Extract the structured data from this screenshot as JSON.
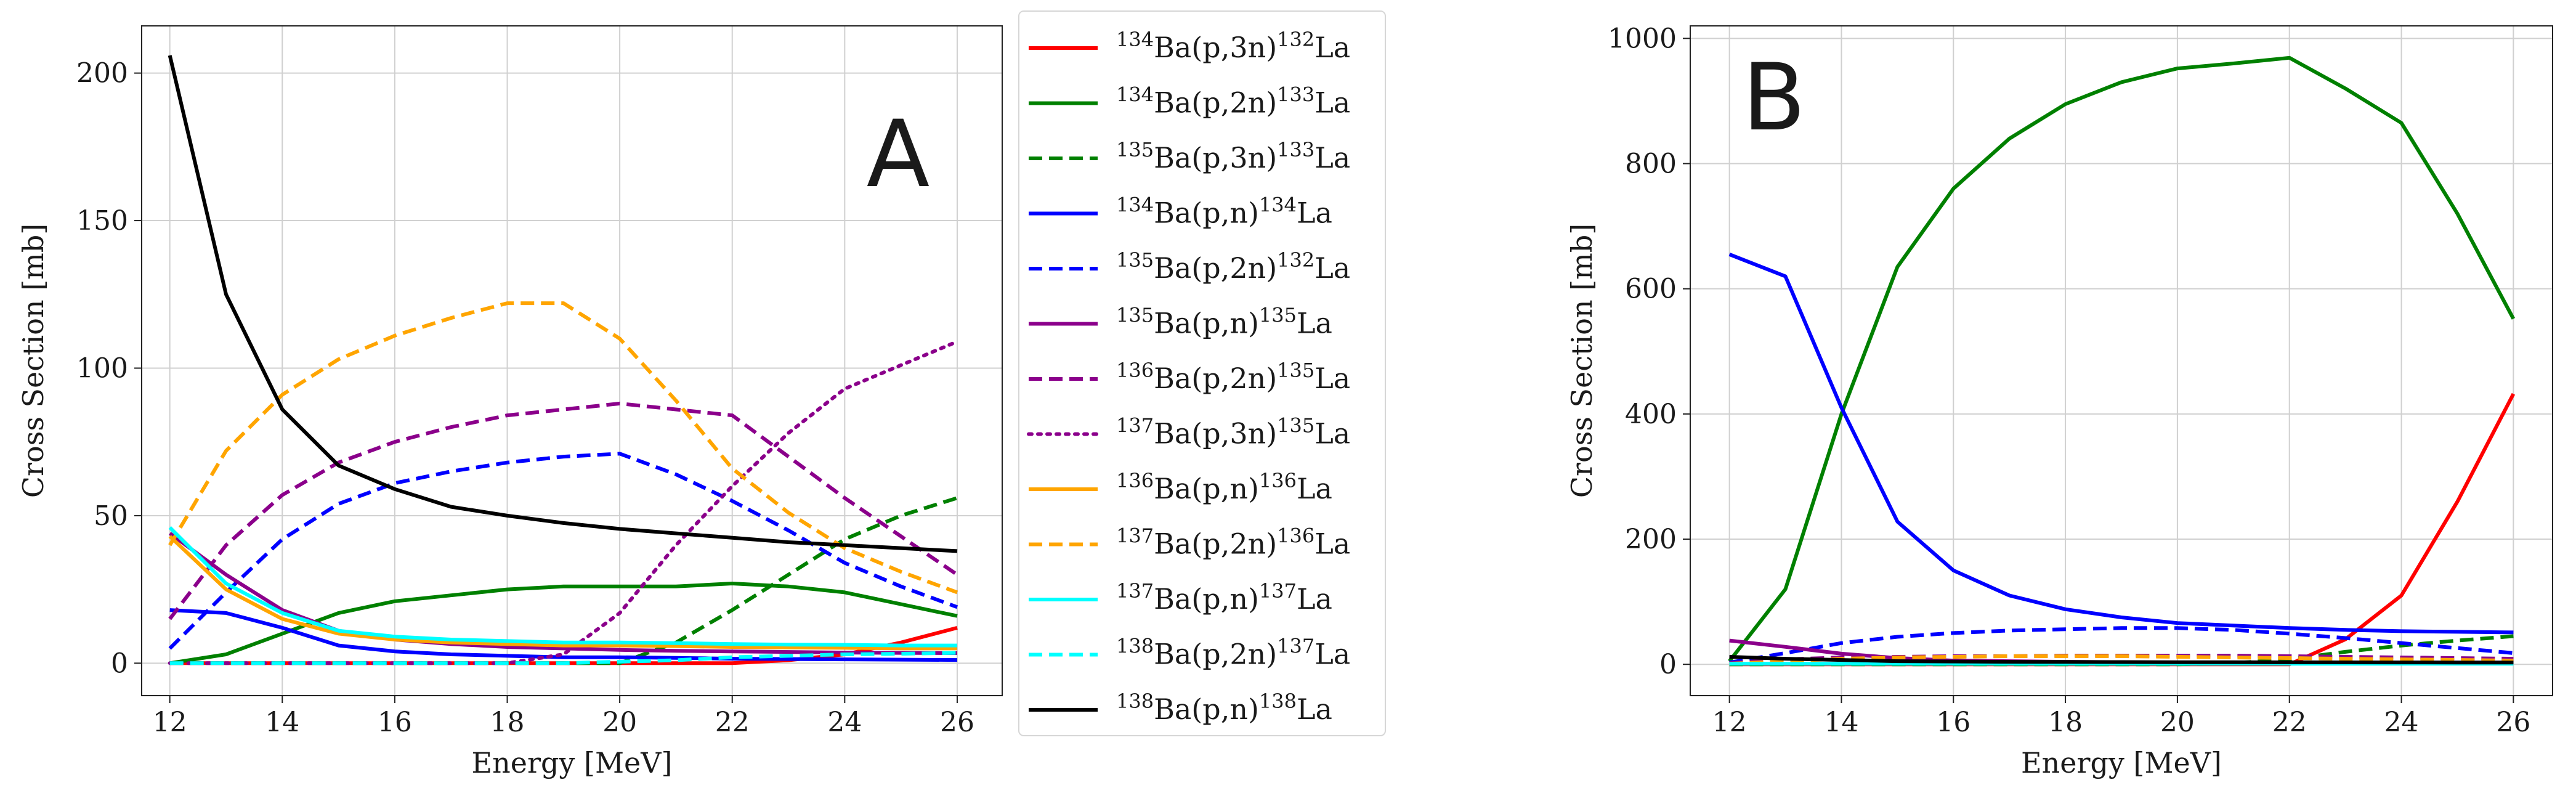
{
  "chart_data": [
    {
      "panel": "A",
      "type": "line",
      "xlabel": "Energy [MeV]",
      "ylabel": "Cross Section [mb]",
      "xlim": [
        11.5,
        26.8
      ],
      "ylim": [
        -11,
        216
      ],
      "xticks": [
        12,
        14,
        16,
        18,
        20,
        22,
        24,
        26
      ],
      "yticks": [
        0,
        50,
        100,
        150,
        200
      ],
      "grid": true,
      "legend_position": "outside-right",
      "x": [
        12,
        13,
        14,
        15,
        16,
        17,
        18,
        19,
        20,
        21,
        22,
        23,
        24,
        25,
        26
      ],
      "series": [
        {
          "target": "134",
          "reaction": "Ba(p,3n)",
          "product": "132",
          "element": "La",
          "color": "#ff0000",
          "dash": "solid",
          "values": [
            0,
            0,
            0,
            0,
            0,
            0,
            0,
            0,
            0,
            0,
            0,
            1,
            3,
            7,
            12
          ]
        },
        {
          "target": "134",
          "reaction": "Ba(p,2n)",
          "product": "133",
          "element": "La",
          "color": "#008000",
          "dash": "solid",
          "values": [
            0,
            3,
            10,
            17,
            21,
            23,
            25,
            26,
            26,
            26,
            27,
            26,
            24,
            20,
            16
          ]
        },
        {
          "target": "135",
          "reaction": "Ba(p,3n)",
          "product": "133",
          "element": "La",
          "color": "#008000",
          "dash": "dashed",
          "values": [
            0,
            0,
            0,
            0,
            0,
            0,
            0,
            0,
            0,
            7,
            18,
            30,
            42,
            50,
            56
          ]
        },
        {
          "target": "134",
          "reaction": "Ba(p,n)",
          "product": "134",
          "element": "La",
          "color": "#0000ff",
          "dash": "solid",
          "values": [
            18,
            17,
            12,
            6,
            4,
            3,
            2.5,
            2,
            2,
            1.8,
            1.5,
            1.4,
            1.3,
            1.2,
            1.1
          ]
        },
        {
          "target": "135",
          "reaction": "Ba(p,2n)",
          "product": "132",
          "element": "La",
          "color": "#0000ff",
          "dash": "dashed",
          "values": [
            5,
            24,
            42,
            54,
            61,
            65,
            68,
            70,
            71,
            64,
            55,
            45,
            34,
            26,
            19
          ]
        },
        {
          "target": "135",
          "reaction": "Ba(p,n)",
          "product": "135",
          "element": "La",
          "color": "#8b008b",
          "dash": "solid",
          "values": [
            44,
            30,
            18,
            11,
            8,
            6.5,
            5.5,
            5,
            4.5,
            4.2,
            4,
            3.8,
            3.6,
            3.5,
            3.4
          ]
        },
        {
          "target": "136",
          "reaction": "Ba(p,2n)",
          "product": "135",
          "element": "La",
          "color": "#8b008b",
          "dash": "dashed",
          "values": [
            15,
            40,
            57,
            68,
            75,
            80,
            84,
            86,
            88,
            86,
            84,
            70,
            56,
            43,
            30
          ]
        },
        {
          "target": "137",
          "reaction": "Ba(p,3n)",
          "product": "135",
          "element": "La",
          "color": "#8b008b",
          "dash": "dotted",
          "values": [
            0,
            0,
            0,
            0,
            0,
            0,
            0,
            3,
            17,
            40,
            60,
            78,
            93,
            101,
            109
          ]
        },
        {
          "target": "136",
          "reaction": "Ba(p,n)",
          "product": "136",
          "element": "La",
          "color": "#ffa500",
          "dash": "solid",
          "values": [
            43,
            25,
            15,
            10,
            8,
            7,
            6.5,
            6,
            6,
            5.8,
            5.5,
            5.3,
            5.2,
            5,
            5
          ]
        },
        {
          "target": "137",
          "reaction": "Ba(p,2n)",
          "product": "136",
          "element": "La",
          "color": "#ffa500",
          "dash": "dashed",
          "values": [
            40,
            72,
            91,
            103,
            111,
            117,
            122,
            122,
            110,
            89,
            66,
            51,
            39,
            31,
            24
          ]
        },
        {
          "target": "137",
          "reaction": "Ba(p,n)",
          "product": "137",
          "element": "La",
          "color": "#00ffff",
          "dash": "solid",
          "values": [
            46,
            27,
            17,
            11,
            9,
            8,
            7.5,
            7,
            7,
            6.8,
            6.5,
            6.3,
            6.2,
            6,
            6
          ]
        },
        {
          "target": "138",
          "reaction": "Ba(p,2n)",
          "product": "137",
          "element": "La",
          "color": "#00ffff",
          "dash": "dashed",
          "values": [
            0,
            0,
            0,
            0,
            0,
            0,
            0,
            0,
            0.5,
            1,
            2,
            2.5,
            3,
            3.2,
            3.5
          ]
        },
        {
          "target": "138",
          "reaction": "Ba(p,n)",
          "product": "138",
          "element": "La",
          "color": "#000000",
          "dash": "solid",
          "values": [
            206,
            125,
            86,
            67,
            59,
            53,
            50,
            47.5,
            45.5,
            44,
            42.5,
            41,
            40,
            39,
            38
          ]
        }
      ]
    },
    {
      "panel": "B",
      "type": "line",
      "xlabel": "Energy [MeV]",
      "ylabel": "Cross Section [mb]",
      "xlim": [
        11.3,
        26.7
      ],
      "ylim": [
        -50,
        1020
      ],
      "xticks": [
        12,
        14,
        16,
        18,
        20,
        22,
        24,
        26
      ],
      "yticks": [
        0,
        200,
        400,
        600,
        800,
        1000
      ],
      "grid": true,
      "x": [
        12,
        13,
        14,
        15,
        16,
        17,
        18,
        19,
        20,
        21,
        22,
        23,
        24,
        25,
        26
      ],
      "series": [
        {
          "label": "Ba(p,3n) 132La",
          "color": "#ff0000",
          "dash": "solid",
          "values": [
            0,
            0,
            0,
            0,
            0,
            0,
            0,
            0,
            0,
            0,
            0,
            40,
            110,
            260,
            432
          ]
        },
        {
          "label": "Ba(p,2n) 133La",
          "color": "#008000",
          "dash": "solid",
          "values": [
            5,
            120,
            400,
            635,
            760,
            840,
            895,
            930,
            952,
            960,
            969,
            920,
            865,
            720,
            552
          ]
        },
        {
          "label": "Ba(p,3n) 133La",
          "color": "#008000",
          "dash": "dashed",
          "values": [
            0,
            0,
            0,
            0,
            0,
            0,
            0,
            0,
            0,
            2,
            8,
            20,
            30,
            38,
            45
          ]
        },
        {
          "label": "Ba(p,n) 134La",
          "color": "#0000ff",
          "dash": "solid",
          "values": [
            655,
            620,
            410,
            228,
            150,
            110,
            88,
            75,
            66,
            62,
            58,
            55,
            53,
            52,
            51
          ]
        },
        {
          "label": "Ba(p,2n) 132La",
          "color": "#0000ff",
          "dash": "dashed",
          "values": [
            3,
            18,
            34,
            44,
            50,
            54,
            56,
            58,
            58,
            55,
            49,
            42,
            34,
            26,
            18
          ]
        },
        {
          "label": "Ba(p,n) 135La",
          "color": "#8b008b",
          "dash": "solid",
          "values": [
            38,
            28,
            17,
            10,
            6,
            5,
            4,
            3.5,
            3,
            3,
            3,
            3,
            3,
            3,
            3
          ]
        },
        {
          "label": "Ba(p,2n) 135La",
          "color": "#8b008b",
          "dash": "dashed",
          "values": [
            2,
            8,
            11,
            12,
            13,
            13,
            14,
            14,
            14,
            14,
            13,
            12,
            11,
            10,
            9
          ]
        },
        {
          "label": "Ba(p,2n) 136La",
          "color": "#ffa500",
          "dash": "dashed",
          "values": [
            1,
            5,
            9,
            11,
            12,
            13,
            13,
            13,
            12,
            11,
            10,
            9,
            8,
            7,
            6
          ]
        },
        {
          "label": "Ba(p,n) 137La",
          "color": "#00ffff",
          "dash": "solid",
          "values": [
            1,
            1,
            1,
            1,
            1,
            1,
            1,
            1,
            1,
            1,
            1,
            1,
            1,
            1,
            1
          ]
        },
        {
          "label": "Ba(p,n) 138La",
          "color": "#000000",
          "dash": "solid",
          "values": [
            12,
            9,
            7,
            5,
            4.5,
            4,
            3.8,
            3.6,
            3.5,
            3.4,
            3.3,
            3.2,
            3.1,
            3,
            3
          ]
        }
      ]
    }
  ],
  "annotations": {
    "panel_a_letter": "A",
    "panel_b_letter": "B"
  }
}
